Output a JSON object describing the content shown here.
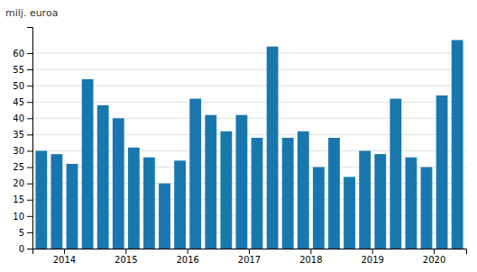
{
  "chart_data": {
    "type": "bar",
    "ylabel": "milj. euroa",
    "categories": [
      "2014",
      null,
      null,
      null,
      "2015",
      null,
      null,
      null,
      "2016",
      null,
      null,
      null,
      "2017",
      null,
      null,
      null,
      "2018",
      null,
      null,
      null,
      "2019",
      null,
      null,
      null,
      "2020",
      null,
      null,
      null
    ],
    "values": [
      30,
      29,
      26,
      52,
      44,
      40,
      31,
      28,
      20,
      27,
      46,
      41,
      36,
      41,
      34,
      62,
      34,
      36,
      25,
      34,
      22,
      30,
      29,
      46,
      28,
      25,
      47,
      64
    ],
    "color": "#1878ae",
    "ylim": [
      0,
      68
    ],
    "yticks": [
      0,
      5,
      10,
      15,
      20,
      25,
      30,
      35,
      40,
      45,
      50,
      55,
      60
    ],
    "grid": true
  }
}
